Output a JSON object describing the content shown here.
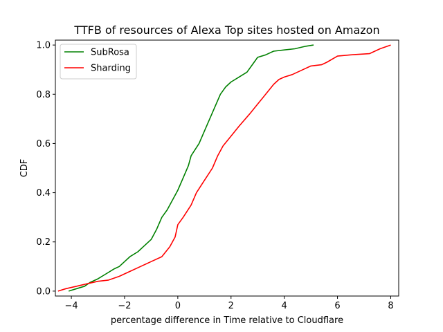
{
  "chart_data": {
    "type": "line",
    "title": "TTFB of resources of Alexa Top sites hosted on Amazon",
    "xlabel": "percentage difference in Time relative to Cloudflare",
    "ylabel": "CDF",
    "xlim": [
      -4.6,
      8.3
    ],
    "ylim": [
      -0.02,
      1.02
    ],
    "xticks": [
      -4,
      -2,
      0,
      2,
      4,
      6,
      8
    ],
    "xtick_labels": [
      "−4",
      "−2",
      "0",
      "2",
      "4",
      "6",
      "8"
    ],
    "yticks": [
      0.0,
      0.2,
      0.4,
      0.6,
      0.8,
      1.0
    ],
    "ytick_labels": [
      "0.0",
      "0.2",
      "0.4",
      "0.6",
      "0.8",
      "1.0"
    ],
    "grid": false,
    "legend_position": "top-left",
    "series": [
      {
        "name": "SubRosa",
        "color": "#008000",
        "x": [
          -4.1,
          -3.8,
          -3.5,
          -3.3,
          -3.0,
          -2.7,
          -2.4,
          -2.2,
          -2.0,
          -1.8,
          -1.5,
          -1.3,
          -1.0,
          -0.8,
          -0.6,
          -0.4,
          -0.2,
          0.0,
          0.2,
          0.4,
          0.5,
          0.8,
          1.0,
          1.2,
          1.4,
          1.6,
          1.8,
          2.0,
          2.3,
          2.6,
          2.8,
          3.0,
          3.3,
          3.6,
          4.0,
          4.4,
          4.8,
          5.1
        ],
        "y": [
          0.0,
          0.01,
          0.02,
          0.035,
          0.05,
          0.07,
          0.09,
          0.1,
          0.12,
          0.14,
          0.16,
          0.18,
          0.21,
          0.25,
          0.3,
          0.33,
          0.37,
          0.41,
          0.46,
          0.51,
          0.55,
          0.6,
          0.65,
          0.7,
          0.75,
          0.8,
          0.83,
          0.85,
          0.87,
          0.89,
          0.92,
          0.95,
          0.96,
          0.975,
          0.98,
          0.985,
          0.995,
          1.0
        ]
      },
      {
        "name": "Sharding",
        "color": "#ff0000",
        "x": [
          -4.5,
          -4.2,
          -3.8,
          -3.4,
          -3.0,
          -2.6,
          -2.2,
          -1.8,
          -1.4,
          -1.0,
          -0.6,
          -0.3,
          -0.1,
          0.0,
          0.2,
          0.5,
          0.7,
          1.0,
          1.3,
          1.5,
          1.7,
          2.0,
          2.3,
          2.7,
          3.0,
          3.3,
          3.6,
          3.8,
          4.0,
          4.3,
          4.7,
          5.0,
          5.4,
          5.6,
          6.0,
          6.5,
          7.2,
          7.6,
          8.0
        ],
        "y": [
          0.0,
          0.01,
          0.02,
          0.03,
          0.04,
          0.045,
          0.06,
          0.08,
          0.1,
          0.12,
          0.14,
          0.18,
          0.22,
          0.27,
          0.3,
          0.35,
          0.4,
          0.45,
          0.5,
          0.55,
          0.59,
          0.63,
          0.67,
          0.72,
          0.76,
          0.8,
          0.84,
          0.86,
          0.87,
          0.88,
          0.9,
          0.915,
          0.92,
          0.93,
          0.955,
          0.96,
          0.965,
          0.985,
          1.0
        ]
      }
    ]
  }
}
